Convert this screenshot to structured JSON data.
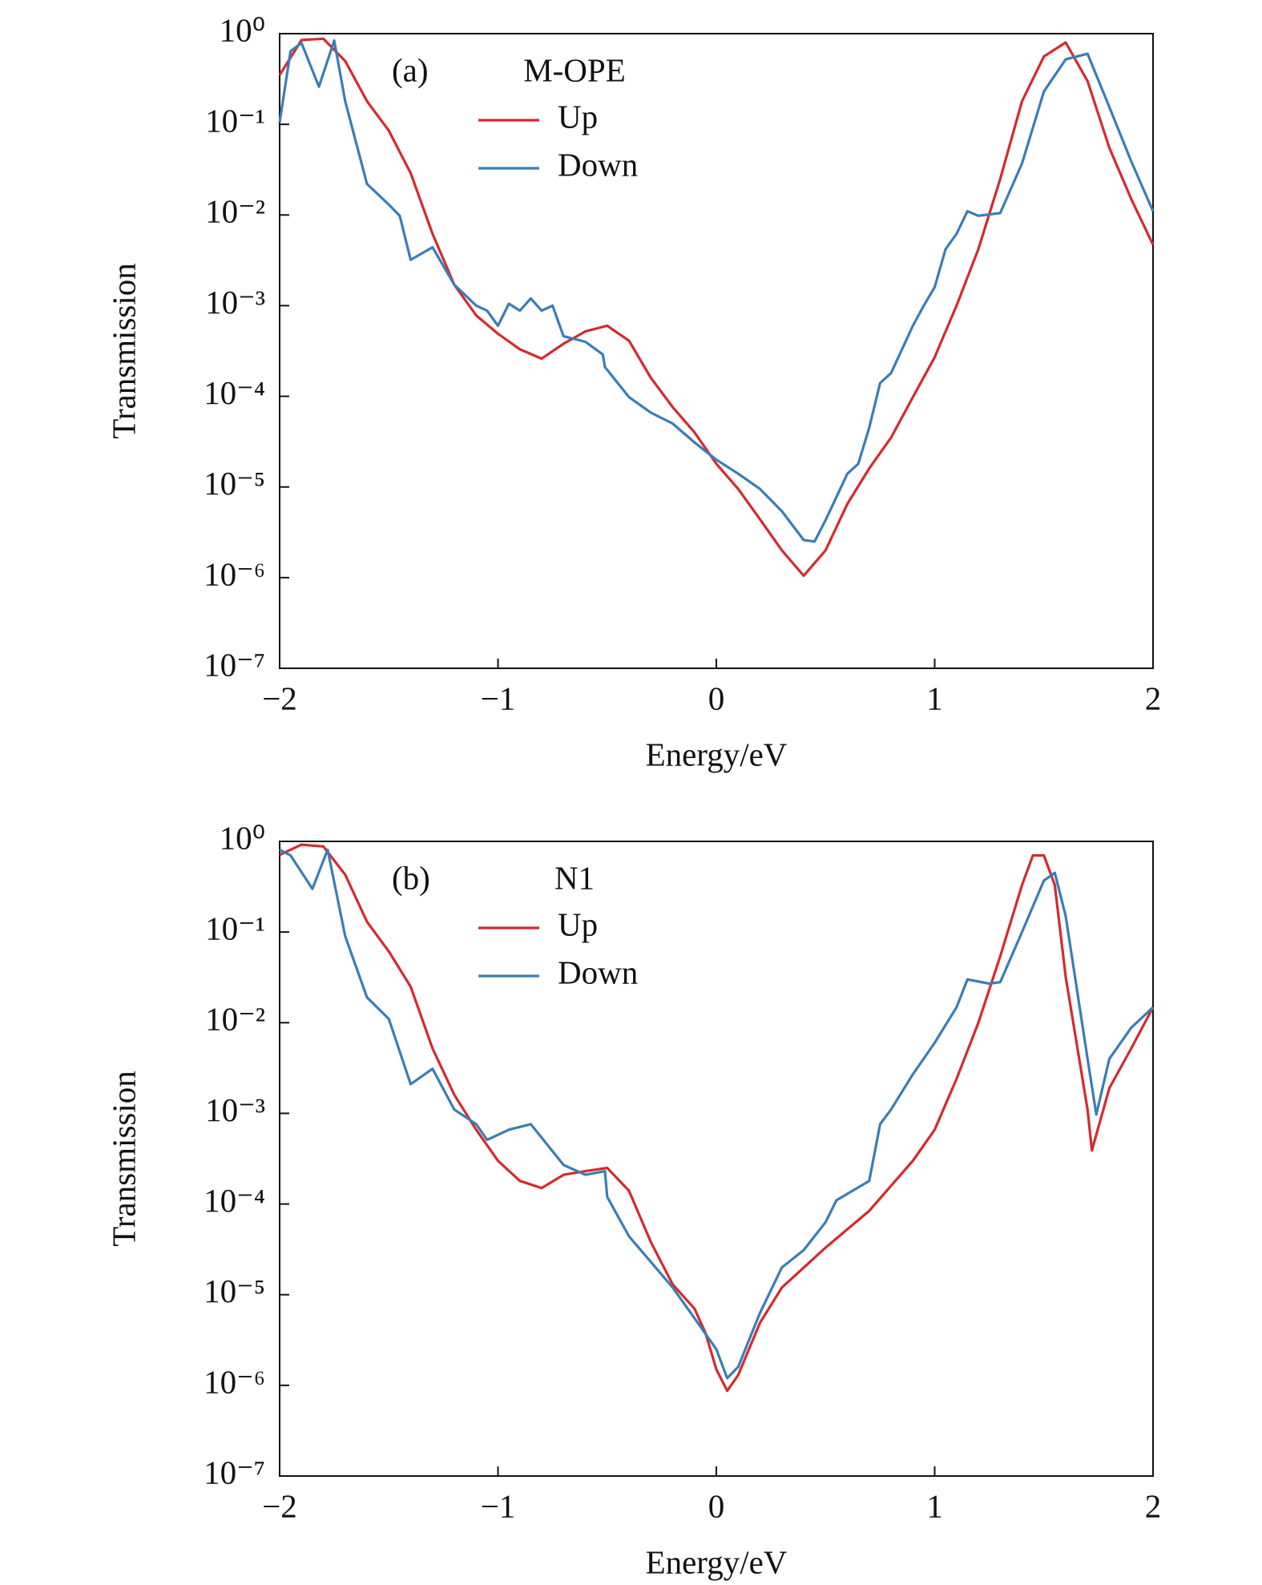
{
  "chart_data": [
    {
      "type": "line",
      "panel_label": "(a)",
      "legend_title": "M-OPE",
      "xlabel": "Energy/eV",
      "ylabel": "Transmission",
      "yscale": "log",
      "xlim": [
        -2,
        2
      ],
      "ylim": [
        1e-07,
        1
      ],
      "xticks": [
        {
          "value": -2,
          "label": "−2"
        },
        {
          "value": -1,
          "label": "−1"
        },
        0,
        1,
        2
      ],
      "yticks": [
        {
          "value": 1e-07,
          "label": "10⁻⁷"
        },
        {
          "value": 1e-06,
          "label": "10⁻⁶"
        },
        {
          "value": 1e-05,
          "label": "10⁻⁵"
        },
        {
          "value": 0.0001,
          "label": "10⁻⁴"
        },
        {
          "value": 0.001,
          "label": "10⁻³"
        },
        {
          "value": 0.01,
          "label": "10⁻²"
        },
        {
          "value": 0.1,
          "label": "10⁻¹"
        },
        {
          "value": 1,
          "label": "10⁰"
        }
      ],
      "series": [
        {
          "name": "Up",
          "color": "#d42a2f",
          "x": [
            -2,
            -1.9,
            -1.8,
            -1.7,
            -1.6,
            -1.5,
            -1.4,
            -1.3,
            -1.2,
            -1.1,
            -1.0,
            -0.9,
            -0.8,
            -0.7,
            -0.6,
            -0.5,
            -0.4,
            -0.3,
            -0.2,
            -0.1,
            0,
            0.1,
            0.2,
            0.3,
            0.4,
            0.5,
            0.6,
            0.7,
            0.8,
            0.9,
            1.0,
            1.1,
            1.2,
            1.3,
            1.4,
            1.5,
            1.6,
            1.7,
            1.8,
            1.9,
            2.0
          ],
          "values": [
            0.35,
            0.85,
            0.88,
            0.5,
            0.18,
            0.085,
            0.029,
            0.0062,
            0.0017,
            0.00078,
            0.00049,
            0.00033,
            0.00026,
            0.00038,
            0.00052,
            0.0006,
            0.00041,
            0.00016,
            7.6e-05,
            4e-05,
            1.8e-05,
            9.5e-06,
            4.4e-06,
            2e-06,
            1.05e-06,
            2e-06,
            6.5e-06,
            1.6e-05,
            3.5e-05,
            9.8e-05,
            0.00027,
            0.001,
            0.0042,
            0.025,
            0.18,
            0.56,
            0.8,
            0.3,
            0.055,
            0.015,
            0.0047
          ]
        },
        {
          "name": "Down",
          "color": "#3b7db5",
          "x": [
            -2,
            -1.95,
            -1.9,
            -1.82,
            -1.75,
            -1.7,
            -1.6,
            -1.5,
            -1.45,
            -1.4,
            -1.3,
            -1.2,
            -1.1,
            -1.05,
            -1.0,
            -0.95,
            -0.9,
            -0.85,
            -0.8,
            -0.75,
            -0.7,
            -0.6,
            -0.52,
            -0.51,
            -0.4,
            -0.3,
            -0.2,
            -0.1,
            0,
            0.1,
            0.2,
            0.3,
            0.4,
            0.45,
            0.5,
            0.6,
            0.65,
            0.7,
            0.75,
            0.8,
            0.9,
            0.95,
            1.0,
            1.05,
            1.1,
            1.15,
            1.2,
            1.3,
            1.4,
            1.5,
            1.6,
            1.7,
            1.8,
            1.9,
            2.0
          ],
          "values": [
            0.105,
            0.64,
            0.79,
            0.26,
            0.84,
            0.18,
            0.022,
            0.013,
            0.0098,
            0.0032,
            0.0044,
            0.0017,
            0.001,
            0.00088,
            0.0006,
            0.00105,
            0.00088,
            0.0012,
            0.00088,
            0.001,
            0.00046,
            0.0004,
            0.00029,
            0.00021,
            9.8e-05,
            6.6e-05,
            5e-05,
            3.1e-05,
            2e-05,
            1.4e-05,
            9.5e-06,
            5.4e-06,
            2.6e-06,
            2.5e-06,
            4.3e-06,
            1.4e-05,
            1.8e-05,
            4.5e-05,
            0.00014,
            0.00018,
            0.0006,
            0.001,
            0.0016,
            0.0042,
            0.0062,
            0.011,
            0.0098,
            0.0105,
            0.037,
            0.23,
            0.52,
            0.6,
            0.155,
            0.039,
            0.011
          ]
        }
      ]
    },
    {
      "type": "line",
      "panel_label": "(b)",
      "legend_title": "N1",
      "xlabel": "Energy/eV",
      "ylabel": "Transmission",
      "yscale": "log",
      "xlim": [
        -2,
        2
      ],
      "ylim": [
        1e-07,
        1
      ],
      "xticks": [
        {
          "value": -2,
          "label": "−2"
        },
        {
          "value": -1,
          "label": "−1"
        },
        0,
        1,
        2
      ],
      "yticks": [
        {
          "value": 1e-07,
          "label": "10⁻⁷"
        },
        {
          "value": 1e-06,
          "label": "10⁻⁶"
        },
        {
          "value": 1e-05,
          "label": "10⁻⁵"
        },
        {
          "value": 0.0001,
          "label": "10⁻⁴"
        },
        {
          "value": 0.001,
          "label": "10⁻³"
        },
        {
          "value": 0.01,
          "label": "10⁻²"
        },
        {
          "value": 0.1,
          "label": "10⁻¹"
        },
        {
          "value": 1,
          "label": "10⁰"
        }
      ],
      "series": [
        {
          "name": "Up",
          "color": "#d42a2f",
          "x": [
            -2,
            -1.9,
            -1.8,
            -1.7,
            -1.6,
            -1.5,
            -1.4,
            -1.3,
            -1.2,
            -1.1,
            -1.0,
            -0.9,
            -0.8,
            -0.7,
            -0.6,
            -0.5,
            -0.4,
            -0.3,
            -0.2,
            -0.1,
            -0.05,
            0,
            0.05,
            0.1,
            0.2,
            0.3,
            0.5,
            0.7,
            0.9,
            1.0,
            1.1,
            1.2,
            1.3,
            1.4,
            1.45,
            1.5,
            1.55,
            1.6,
            1.7,
            1.72,
            1.8,
            1.9,
            2.0
          ],
          "values": [
            0.71,
            0.92,
            0.88,
            0.43,
            0.13,
            0.061,
            0.025,
            0.0052,
            0.0016,
            0.00066,
            0.0003,
            0.00018,
            0.00015,
            0.00021,
            0.00023,
            0.00025,
            0.00014,
            3.8e-05,
            1.3e-05,
            7e-06,
            3.8e-06,
            1.5e-06,
            8.7e-07,
            1.3e-06,
            4.9e-06,
            1.2e-05,
            3.3e-05,
            8.4e-05,
            0.0003,
            0.00066,
            0.0024,
            0.01,
            0.054,
            0.33,
            0.7,
            0.7,
            0.33,
            0.032,
            0.0011,
            0.00039,
            0.0019,
            0.0052,
            0.0148
          ]
        },
        {
          "name": "Down",
          "color": "#3b7db5",
          "x": [
            -2,
            -1.95,
            -1.85,
            -1.78,
            -1.7,
            -1.6,
            -1.5,
            -1.4,
            -1.3,
            -1.2,
            -1.1,
            -1.05,
            -1.0,
            -0.95,
            -0.85,
            -0.7,
            -0.6,
            -0.51,
            -0.5,
            -0.4,
            -0.3,
            -0.2,
            -0.1,
            0,
            0.05,
            0.1,
            0.2,
            0.3,
            0.4,
            0.5,
            0.55,
            0.7,
            0.75,
            0.8,
            0.9,
            1.0,
            1.1,
            1.15,
            1.25,
            1.3,
            1.4,
            1.5,
            1.55,
            1.6,
            1.7,
            1.74,
            1.8,
            1.9,
            2.0
          ],
          "values": [
            0.81,
            0.7,
            0.3,
            0.81,
            0.09,
            0.019,
            0.011,
            0.0021,
            0.0031,
            0.0011,
            0.00076,
            0.00051,
            0.00058,
            0.00066,
            0.00076,
            0.00027,
            0.00021,
            0.00023,
            0.00012,
            4.4e-05,
            2.3e-05,
            1.2e-05,
            5.5e-06,
            2.5e-06,
            1.2e-06,
            1.6e-06,
            6.3e-06,
            2e-05,
            3.1e-05,
            6.3e-05,
            0.00011,
            0.00018,
            0.00076,
            0.0011,
            0.0027,
            0.006,
            0.0148,
            0.03,
            0.027,
            0.028,
            0.1,
            0.37,
            0.45,
            0.15,
            0.004,
            0.00097,
            0.004,
            0.0088,
            0.0148
          ]
        }
      ]
    }
  ]
}
